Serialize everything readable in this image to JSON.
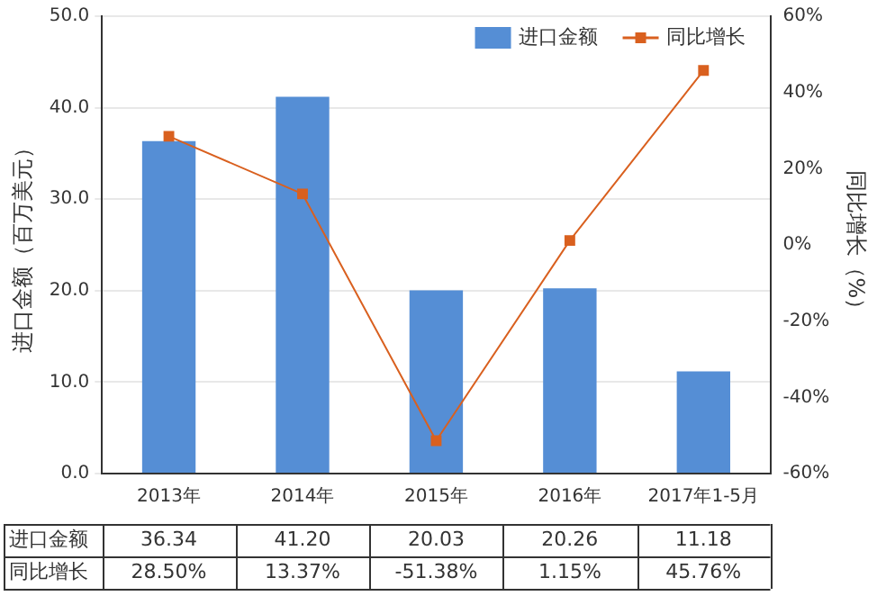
{
  "chart_data": {
    "type": "bar",
    "categories": [
      "2013年",
      "2014年",
      "2015年",
      "2016年",
      "2017年1-5月"
    ],
    "series": [
      {
        "name": "进口金额",
        "color": "#558ed5",
        "values": [
          36.34,
          41.2,
          20.03,
          20.26,
          11.18
        ],
        "value_labels": [
          "36.34",
          "41.20",
          "20.03",
          "20.26",
          "11.18"
        ]
      },
      {
        "name": "同比增长",
        "type": "line",
        "axis": "y2",
        "color": "#d9601f",
        "marker": "square",
        "values": [
          28.5,
          13.37,
          -51.38,
          1.15,
          45.76
        ],
        "value_labels": [
          "28.50%",
          "13.37%",
          "-51.38%",
          "1.15%",
          "45.76%"
        ]
      }
    ],
    "ylabel": "进口金额（百万美元）",
    "y2label": "同比增长（%）",
    "ylim": [
      0,
      50
    ],
    "yticks": [
      {
        "value": 0,
        "label": "0.0"
      },
      {
        "value": 10,
        "label": "10.0"
      },
      {
        "value": 20,
        "label": "20.0"
      },
      {
        "value": 30,
        "label": "30.0"
      },
      {
        "value": 40,
        "label": "40.0"
      },
      {
        "value": 50,
        "label": "50.0"
      }
    ],
    "y2lim": [
      -60,
      60
    ],
    "y2ticks": [
      {
        "value": -60,
        "label": "-60%"
      },
      {
        "value": -40,
        "label": "-40%"
      },
      {
        "value": -20,
        "label": "-20%"
      },
      {
        "value": 0,
        "label": "0%"
      },
      {
        "value": 20,
        "label": "20%"
      },
      {
        "value": 40,
        "label": "40%"
      },
      {
        "value": 60,
        "label": "60%"
      }
    ],
    "grid": "y",
    "legend": "top right"
  }
}
